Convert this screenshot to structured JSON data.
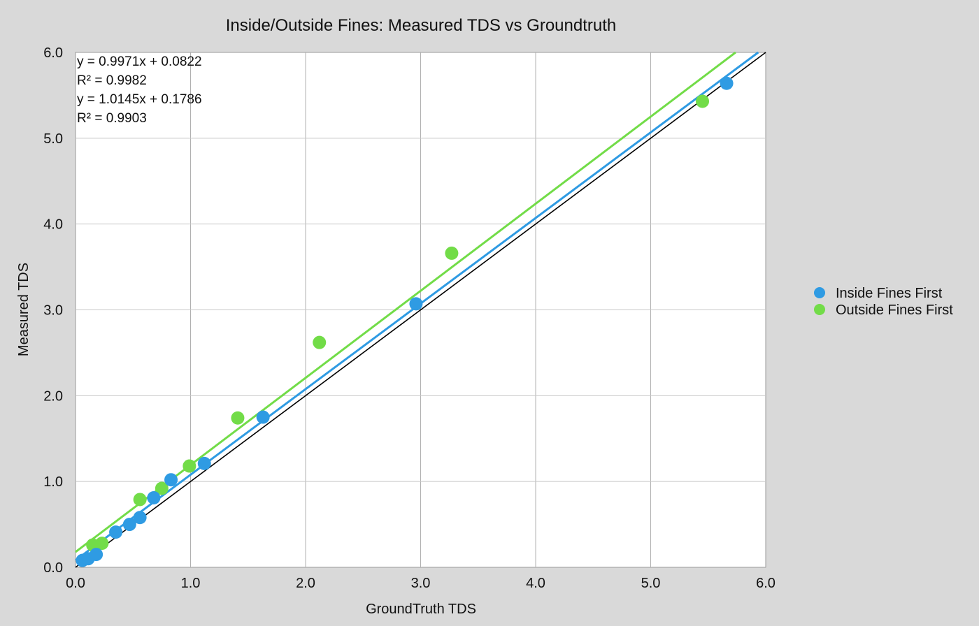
{
  "chart_data": {
    "type": "scatter",
    "title": "Inside/Outside Fines: Measured TDS vs Groundtruth",
    "xlabel": "GroundTruth TDS",
    "ylabel": "Measured TDS",
    "xlim": [
      0,
      6
    ],
    "ylim": [
      0,
      6
    ],
    "x_ticks": [
      "0.0",
      "1.0",
      "2.0",
      "3.0",
      "4.0",
      "5.0",
      "6.0"
    ],
    "y_ticks": [
      "0.0",
      "1.0",
      "2.0",
      "3.0",
      "4.0",
      "5.0",
      "6.0"
    ],
    "grid": true,
    "legend_position": "right",
    "reference_line": {
      "slope": 1,
      "intercept": 0,
      "color": "#000000"
    },
    "annotations": [
      "y = 0.9971x + 0.0822",
      "R² = 0.9982",
      "y = 1.0145x + 0.1786",
      "R² = 0.9903"
    ],
    "series": [
      {
        "name": "Inside Fines First",
        "color": "#2f9be3",
        "trendline": {
          "slope": 0.9971,
          "intercept": 0.0822
        },
        "points": [
          [
            0.06,
            0.08
          ],
          [
            0.11,
            0.1
          ],
          [
            0.18,
            0.15
          ],
          [
            0.35,
            0.41
          ],
          [
            0.47,
            0.5
          ],
          [
            0.56,
            0.58
          ],
          [
            0.68,
            0.81
          ],
          [
            0.83,
            1.02
          ],
          [
            1.12,
            1.21
          ],
          [
            1.63,
            1.75
          ],
          [
            2.96,
            3.07
          ],
          [
            5.66,
            5.64
          ]
        ]
      },
      {
        "name": "Outside Fines First",
        "color": "#72dc48",
        "trendline": {
          "slope": 1.0145,
          "intercept": 0.1786
        },
        "points": [
          [
            0.15,
            0.26
          ],
          [
            0.23,
            0.28
          ],
          [
            0.56,
            0.79
          ],
          [
            0.75,
            0.92
          ],
          [
            0.99,
            1.18
          ],
          [
            1.41,
            1.74
          ],
          [
            2.12,
            2.62
          ],
          [
            3.27,
            3.66
          ],
          [
            5.45,
            5.43
          ]
        ]
      }
    ]
  }
}
